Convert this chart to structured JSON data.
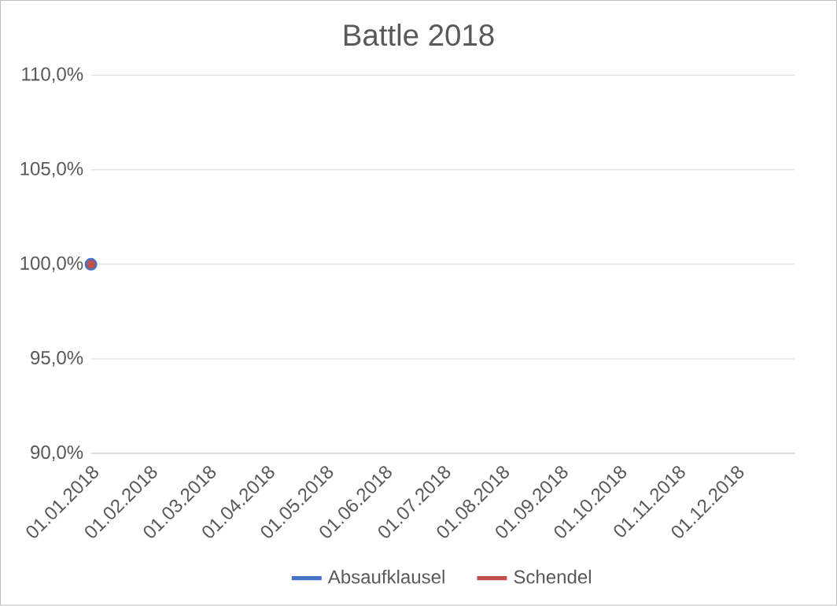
{
  "chart_data": {
    "type": "line",
    "title": "Battle 2018",
    "categories": [
      "01.01.2018",
      "01.02.2018",
      "01.03.2018",
      "01.04.2018",
      "01.05.2018",
      "01.06.2018",
      "01.07.2018",
      "01.08.2018",
      "01.09.2018",
      "01.10.2018",
      "01.11.2018",
      "01.12.2018"
    ],
    "series": [
      {
        "name": "Absaufklausel",
        "color": "#4472c4",
        "values": [
          100,
          null,
          null,
          null,
          null,
          null,
          null,
          null,
          null,
          null,
          null,
          null
        ]
      },
      {
        "name": "Schendel",
        "color": "#c0504d",
        "values": [
          100,
          null,
          null,
          null,
          null,
          null,
          null,
          null,
          null,
          null,
          null,
          null
        ]
      }
    ],
    "ylim": [
      90,
      110
    ],
    "yticks": [
      {
        "value": 90,
        "label": "90,0%"
      },
      {
        "value": 95,
        "label": "95,0%"
      },
      {
        "value": 100,
        "label": "100,0%"
      },
      {
        "value": 105,
        "label": "105,0%"
      },
      {
        "value": 110,
        "label": "110,0%"
      }
    ],
    "grid": "y",
    "legend": "bottom",
    "marker": "circle",
    "line_style": "solid"
  }
}
